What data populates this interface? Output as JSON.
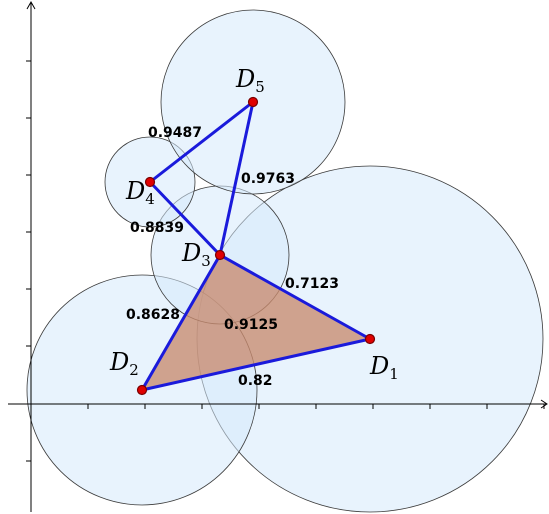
{
  "points": [
    {
      "letter": "D",
      "sub": "1"
    },
    {
      "letter": "D",
      "sub": "2"
    },
    {
      "letter": "D",
      "sub": "3"
    },
    {
      "letter": "D",
      "sub": "4"
    },
    {
      "letter": "D",
      "sub": "5"
    }
  ],
  "distances": {
    "d4_d5": "0.9487",
    "d3_d5": "0.9763",
    "d3_d4": "0.8839",
    "d1_d3": "0.7123",
    "d2_d3": "0.8628",
    "d1_d2_inner": "0.9125",
    "d1_d2": "0.82"
  },
  "colors": {
    "circle_fill": "#d6e9fb",
    "triangle_fill": "#c88a6e",
    "edge": "#1a1adb",
    "point": "#e00000"
  }
}
